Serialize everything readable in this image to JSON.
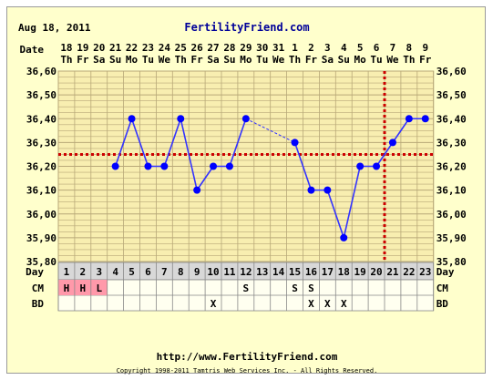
{
  "header": {
    "date": "Aug 18, 2011",
    "site": "FertilityFriend.com"
  },
  "footer": {
    "url": "http://www.FertilityFriend.com",
    "copyright": "Copyright 1998-2011 Tamtris Web Services Inc. - All Rights Reserved."
  },
  "chart_data": {
    "type": "line",
    "title": "",
    "xlabel": "Day",
    "ylabel": "",
    "ylim": [
      35.8,
      36.6
    ],
    "yticks": [
      "36,60",
      "36,50",
      "36,40",
      "36,30",
      "36,20",
      "36,10",
      "36,00",
      "35,90",
      "35,80"
    ],
    "row_labels": {
      "date": "Date",
      "day": "Day",
      "cm": "CM",
      "bd": "BD"
    },
    "dates": [
      "18",
      "19",
      "20",
      "21",
      "22",
      "23",
      "24",
      "25",
      "26",
      "27",
      "28",
      "29",
      "30",
      "31",
      "1",
      "2",
      "3",
      "4",
      "5",
      "6",
      "7",
      "8",
      "9"
    ],
    "weekdays": [
      "Th",
      "Fr",
      "Sa",
      "Su",
      "Mo",
      "Tu",
      "We",
      "Th",
      "Fr",
      "Sa",
      "Su",
      "Mo",
      "Tu",
      "We",
      "Th",
      "Fr",
      "Sa",
      "Su",
      "Mo",
      "Tu",
      "We",
      "Th",
      "Fr"
    ],
    "days": [
      "1",
      "2",
      "3",
      "4",
      "5",
      "6",
      "7",
      "8",
      "9",
      "10",
      "11",
      "12",
      "13",
      "14",
      "15",
      "16",
      "17",
      "18",
      "19",
      "20",
      "21",
      "22",
      "23"
    ],
    "temps": [
      null,
      null,
      null,
      36.2,
      36.4,
      36.2,
      36.2,
      36.4,
      36.1,
      36.2,
      36.2,
      36.4,
      null,
      null,
      36.3,
      36.1,
      36.1,
      35.9,
      36.2,
      36.2,
      36.3,
      36.4,
      36.4
    ],
    "solid_segments": [
      [
        4,
        12
      ],
      [
        15,
        23
      ]
    ],
    "dashed_segments": [
      [
        12,
        15
      ]
    ],
    "coverline": 36.25,
    "ovulation_day": 20,
    "cm": [
      "H",
      "H",
      "L",
      "",
      "",
      "",
      "",
      "",
      "",
      "",
      "",
      "S",
      "",
      "",
      "S",
      "S",
      "",
      "",
      "",
      "",
      "",
      "",
      ""
    ],
    "cm_highlight_days": [
      1,
      2,
      3
    ],
    "bd": [
      "",
      "",
      "",
      "",
      "",
      "",
      "",
      "",
      "",
      "X",
      "",
      "",
      "",
      "",
      "",
      "X",
      "X",
      "X",
      "",
      "",
      "",
      "",
      ""
    ],
    "colors": {
      "line": "#3333ff",
      "point": "#0000ff",
      "coverline": "#cc0000",
      "ovulation": "#cc0000",
      "grid": "#b8a878",
      "grid_bg": "#f8eeb0",
      "table_bg": "#fffff0",
      "table_header_bg": "#d8d8d8",
      "cm_highlight": "#ff99aa",
      "site_text": "#000099"
    }
  }
}
